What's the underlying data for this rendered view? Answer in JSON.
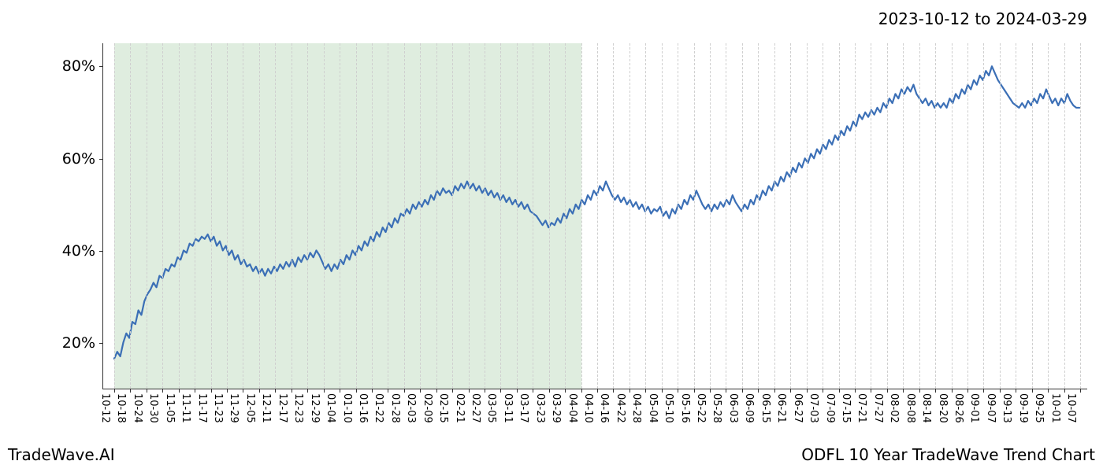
{
  "header": {
    "date_range": "2023-10-12 to 2024-03-29"
  },
  "footer": {
    "brand": "TradeWave.AI",
    "caption": "ODFL 10 Year TradeWave Trend Chart"
  },
  "chart": {
    "type": "line",
    "background_color": "#ffffff",
    "grid_color": "#cfcfcf",
    "axis_color": "#333333",
    "line_color": "#3b6fb6",
    "line_width": 2.2,
    "highlight_band": {
      "start_index": 0,
      "end_index": 29,
      "fill_color": "rgba(140,190,140,0.28)"
    },
    "y_axis": {
      "min": 10,
      "max": 85,
      "ticks": [
        20,
        40,
        60,
        80
      ],
      "tick_labels": [
        "20%",
        "40%",
        "60%",
        "80%"
      ],
      "label_fontsize": 19
    },
    "x_axis": {
      "label_fontsize": 13,
      "tick_rotation_deg": 90,
      "categories": [
        "10-12",
        "10-18",
        "10-24",
        "10-30",
        "11-05",
        "11-11",
        "11-17",
        "11-23",
        "11-29",
        "12-05",
        "12-11",
        "12-17",
        "12-23",
        "12-29",
        "01-04",
        "01-10",
        "01-16",
        "01-22",
        "01-28",
        "02-03",
        "02-09",
        "02-15",
        "02-21",
        "02-27",
        "03-05",
        "03-11",
        "03-17",
        "03-23",
        "03-29",
        "04-04",
        "04-10",
        "04-16",
        "04-22",
        "04-28",
        "05-04",
        "05-10",
        "05-16",
        "05-22",
        "05-28",
        "06-03",
        "06-09",
        "06-15",
        "06-21",
        "06-27",
        "07-03",
        "07-09",
        "07-15",
        "07-21",
        "07-27",
        "08-02",
        "08-08",
        "08-14",
        "08-20",
        "08-26",
        "09-01",
        "09-07",
        "09-13",
        "09-19",
        "09-25",
        "10-01",
        "10-07"
      ]
    },
    "series": [
      16.5,
      18.0,
      17.0,
      20.0,
      22.0,
      21.0,
      24.5,
      24.0,
      27.0,
      26.0,
      29.0,
      30.5,
      31.5,
      33.0,
      32.0,
      34.5,
      34.0,
      36.0,
      35.5,
      37.0,
      36.5,
      38.5,
      38.0,
      40.0,
      39.5,
      41.5,
      41.0,
      42.5,
      42.0,
      43.0,
      42.5,
      43.5,
      42.0,
      43.0,
      41.0,
      42.0,
      40.0,
      41.0,
      39.0,
      40.0,
      38.0,
      39.0,
      37.0,
      38.0,
      36.5,
      37.0,
      35.5,
      36.5,
      35.0,
      36.0,
      34.5,
      36.0,
      35.0,
      36.5,
      35.5,
      37.0,
      36.0,
      37.5,
      36.5,
      38.0,
      36.5,
      38.5,
      37.5,
      39.0,
      38.0,
      39.5,
      38.5,
      40.0,
      39.0,
      37.5,
      36.0,
      37.0,
      35.5,
      37.0,
      36.0,
      38.0,
      37.0,
      39.0,
      38.0,
      40.0,
      39.0,
      41.0,
      40.0,
      42.0,
      41.0,
      43.0,
      42.0,
      44.0,
      43.0,
      45.0,
      44.0,
      46.0,
      45.0,
      47.0,
      46.0,
      48.0,
      47.5,
      49.0,
      48.0,
      50.0,
      49.0,
      50.5,
      49.5,
      51.0,
      50.0,
      52.0,
      51.0,
      53.0,
      52.0,
      53.5,
      52.5,
      53.0,
      52.0,
      54.0,
      53.0,
      54.5,
      53.5,
      55.0,
      53.5,
      54.5,
      53.0,
      54.0,
      52.5,
      53.5,
      52.0,
      53.0,
      51.5,
      52.5,
      51.0,
      52.0,
      50.5,
      51.5,
      50.0,
      51.0,
      49.5,
      50.5,
      49.0,
      50.0,
      48.5,
      48.0,
      47.5,
      46.5,
      45.5,
      46.5,
      45.0,
      46.0,
      45.5,
      47.0,
      46.0,
      48.0,
      47.0,
      49.0,
      48.0,
      50.0,
      49.0,
      51.0,
      50.0,
      52.0,
      51.0,
      53.0,
      52.0,
      54.0,
      53.0,
      55.0,
      53.5,
      52.0,
      51.0,
      52.0,
      50.5,
      51.5,
      50.0,
      51.0,
      49.5,
      50.5,
      49.0,
      50.0,
      48.5,
      49.5,
      48.0,
      49.0,
      48.5,
      49.5,
      47.5,
      48.5,
      47.0,
      49.0,
      48.0,
      50.0,
      49.0,
      51.0,
      50.0,
      52.0,
      51.0,
      53.0,
      51.5,
      50.0,
      49.0,
      50.0,
      48.5,
      50.0,
      49.0,
      50.5,
      49.5,
      51.0,
      50.0,
      52.0,
      50.5,
      49.5,
      48.5,
      50.0,
      49.0,
      51.0,
      50.0,
      52.0,
      51.0,
      53.0,
      52.0,
      54.0,
      53.0,
      55.0,
      54.0,
      56.0,
      55.0,
      57.0,
      56.0,
      58.0,
      57.0,
      59.0,
      58.0,
      60.0,
      59.0,
      61.0,
      60.0,
      62.0,
      61.0,
      63.0,
      62.0,
      64.0,
      63.0,
      65.0,
      64.0,
      66.0,
      65.0,
      67.0,
      66.0,
      68.0,
      67.0,
      69.5,
      68.5,
      70.0,
      69.0,
      70.5,
      69.5,
      71.0,
      70.0,
      72.0,
      71.0,
      73.0,
      72.0,
      74.0,
      73.0,
      75.0,
      74.0,
      75.5,
      74.5,
      76.0,
      74.0,
      73.0,
      72.0,
      73.0,
      71.5,
      72.5,
      71.0,
      72.0,
      71.0,
      72.0,
      71.0,
      73.0,
      72.0,
      74.0,
      73.0,
      75.0,
      74.0,
      76.0,
      75.0,
      77.0,
      76.0,
      78.0,
      77.0,
      79.0,
      78.0,
      80.0,
      78.5,
      77.0,
      76.0,
      75.0,
      74.0,
      73.0,
      72.0,
      71.5,
      71.0,
      72.0,
      71.0,
      72.5,
      71.5,
      73.0,
      72.0,
      74.0,
      73.0,
      75.0,
      73.5,
      72.0,
      73.0,
      71.5,
      73.0,
      72.0,
      74.0,
      72.5,
      71.5,
      71.0,
      71.0
    ]
  }
}
